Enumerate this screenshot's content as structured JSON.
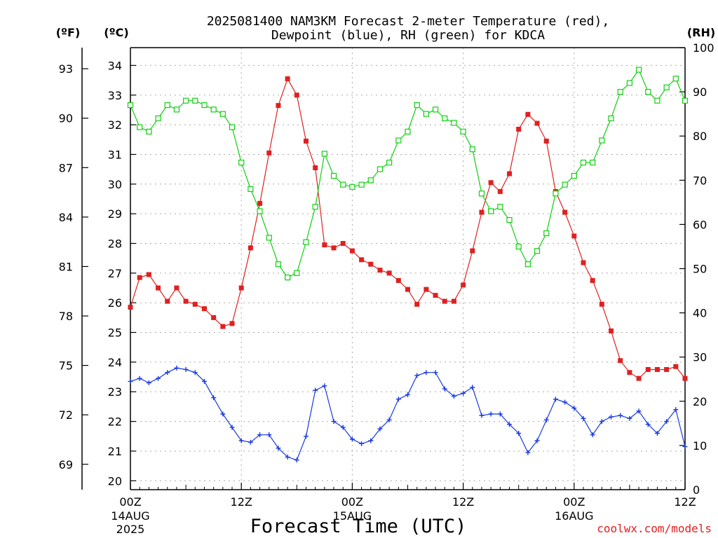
{
  "chart_data": {
    "type": "line",
    "title_line1": "2025081400 NAM3KM Forecast 2-meter Temperature (red),",
    "title_line2": "Dewpoint (blue), RH (green) for KDCA",
    "xlabel": "Forecast Time (UTC)",
    "credit": "coolwx.com/models",
    "axis_labels": {
      "fahrenheit": "(ºF)",
      "celsius": "(ºC)",
      "rh": "(RH)"
    },
    "x_range_hours": [
      0,
      60
    ],
    "celsius_range": [
      19.7,
      34.6
    ],
    "rh_range": [
      0,
      100
    ],
    "celsius_ticks": [
      "20",
      "21",
      "22",
      "23",
      "24",
      "25",
      "26",
      "27",
      "28",
      "29",
      "30",
      "31",
      "32",
      "33",
      "34"
    ],
    "fahrenheit_ticks": [
      "69",
      "72",
      "75",
      "78",
      "81",
      "84",
      "87",
      "90",
      "93"
    ],
    "rh_ticks": [
      "0",
      "10",
      "20",
      "30",
      "40",
      "50",
      "60",
      "70",
      "80",
      "90",
      "100"
    ],
    "x_ticks": [
      {
        "hour": 0,
        "label": "00Z",
        "sub1": "14AUG",
        "sub2": "2025"
      },
      {
        "hour": 12,
        "label": "12Z",
        "sub1": "",
        "sub2": ""
      },
      {
        "hour": 24,
        "label": "00Z",
        "sub1": "15AUG",
        "sub2": ""
      },
      {
        "hour": 36,
        "label": "12Z",
        "sub1": "",
        "sub2": ""
      },
      {
        "hour": 48,
        "label": "00Z",
        "sub1": "16AUG",
        "sub2": ""
      },
      {
        "hour": 60,
        "label": "12Z",
        "sub1": "",
        "sub2": ""
      }
    ],
    "colors": {
      "temperature": "#e02020",
      "dewpoint": "#1a3ae0",
      "rh": "#10d010",
      "grid": "#aaaaaa"
    },
    "series": [
      {
        "key": "temperature",
        "values": [
          25.85,
          26.85,
          26.95,
          26.5,
          26.05,
          26.5,
          26.05,
          25.95,
          25.8,
          25.5,
          25.2,
          25.3,
          26.5,
          27.85,
          29.35,
          31.05,
          32.65,
          33.55,
          33.0,
          31.45,
          30.55,
          27.95,
          27.85,
          28.0,
          27.75,
          27.45,
          27.3,
          27.1,
          27.0,
          26.75,
          26.45,
          25.95,
          26.45,
          26.25,
          26.05,
          26.05,
          26.6,
          27.75,
          29.05,
          30.05,
          29.75,
          30.35,
          31.85,
          32.35,
          32.05,
          31.45,
          29.75,
          29.05,
          28.25,
          27.35,
          26.75,
          25.95,
          25.05,
          24.05,
          23.65,
          23.45,
          23.75,
          23.75,
          23.75,
          23.85,
          23.45
        ]
      },
      {
        "key": "dewpoint",
        "values": [
          23.35,
          23.45,
          23.3,
          23.45,
          23.65,
          23.8,
          23.75,
          23.65,
          23.35,
          22.8,
          22.25,
          21.8,
          21.35,
          21.3,
          21.55,
          21.55,
          21.1,
          20.8,
          20.7,
          21.5,
          23.05,
          23.2,
          22.0,
          21.8,
          21.4,
          21.25,
          21.35,
          21.75,
          22.05,
          22.75,
          22.9,
          23.55,
          23.65,
          23.65,
          23.1,
          22.85,
          22.95,
          23.15,
          22.2,
          22.25,
          22.25,
          21.9,
          21.6,
          20.95,
          21.35,
          22.05,
          22.75,
          22.65,
          22.45,
          22.1,
          21.55,
          22.0,
          22.15,
          22.2,
          22.1,
          22.35,
          21.9,
          21.6,
          22.0,
          22.4,
          21.15
        ]
      },
      {
        "key": "rh",
        "values": [
          87,
          82,
          81,
          84,
          87,
          86,
          88,
          88,
          87,
          86,
          85,
          82,
          74,
          68,
          63,
          57,
          51,
          48,
          49,
          56,
          64,
          76,
          71,
          69,
          68.5,
          69,
          70,
          72.5,
          74,
          79,
          81,
          87,
          85,
          86,
          84,
          83,
          81,
          77,
          67,
          63,
          64,
          61,
          55,
          51,
          54,
          58,
          67,
          69,
          71,
          74,
          74,
          79,
          84,
          90,
          92,
          95,
          90,
          88,
          91,
          93,
          88
        ]
      }
    ]
  }
}
